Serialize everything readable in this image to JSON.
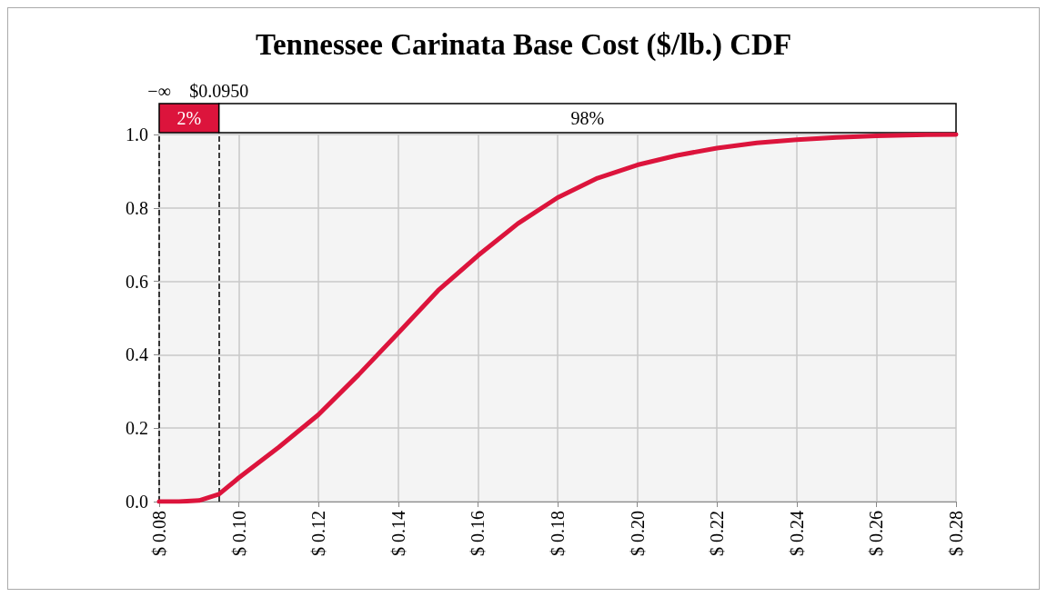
{
  "chart_data": {
    "type": "line",
    "title": "Tennessee Carinata Base Cost ($/lb.) CDF",
    "x": [
      0.08,
      0.085,
      0.09,
      0.095,
      0.1,
      0.11,
      0.12,
      0.13,
      0.14,
      0.15,
      0.16,
      0.17,
      0.18,
      0.19,
      0.2,
      0.21,
      0.22,
      0.23,
      0.24,
      0.25,
      0.26,
      0.27,
      0.28
    ],
    "series": [
      {
        "color": "#dc143c",
        "values": [
          0,
          0,
          0.003,
          0.02,
          0.065,
          0.148,
          0.237,
          0.345,
          0.459,
          0.575,
          0.67,
          0.757,
          0.828,
          0.881,
          0.917,
          0.943,
          0.963,
          0.977,
          0.986,
          0.992,
          0.996,
          0.999,
          1.0
        ]
      }
    ],
    "xlim": [
      0.08,
      0.28
    ],
    "xticks": [
      {
        "value": 0.08,
        "label": "$ 0.08"
      },
      {
        "value": 0.1,
        "label": "$ 0.10"
      },
      {
        "value": 0.12,
        "label": "$ 0.12"
      },
      {
        "value": 0.14,
        "label": "$ 0.14"
      },
      {
        "value": 0.16,
        "label": "$ 0.16"
      },
      {
        "value": 0.18,
        "label": "$ 0.18"
      },
      {
        "value": 0.2,
        "label": "$ 0.20"
      },
      {
        "value": 0.22,
        "label": "$ 0.22"
      },
      {
        "value": 0.24,
        "label": "$ 0.24"
      },
      {
        "value": 0.26,
        "label": "$ 0.26"
      },
      {
        "value": 0.28,
        "label": "$ 0.28"
      }
    ],
    "ylim": [
      0,
      1
    ],
    "yticks": [
      {
        "value": 0,
        "label": "0.0"
      },
      {
        "value": 0.2,
        "label": "0.2"
      },
      {
        "value": 0.4,
        "label": "0.4"
      },
      {
        "value": 0.6,
        "label": "0.6"
      },
      {
        "value": 0.8,
        "label": "0.8"
      },
      {
        "value": 1,
        "label": "1.0"
      }
    ],
    "grid": true,
    "marker": "none",
    "line_style": "solid",
    "annotations": [
      "2%",
      "98%"
    ],
    "ref_lines": [
      {
        "axis": "x",
        "value": 0.08,
        "label": "−∞",
        "line_style": "dashed",
        "color": "#000000"
      },
      {
        "axis": "x",
        "value": 0.095,
        "label": "$0.0950",
        "line_style": "dashed",
        "color": "#000000"
      }
    ]
  }
}
